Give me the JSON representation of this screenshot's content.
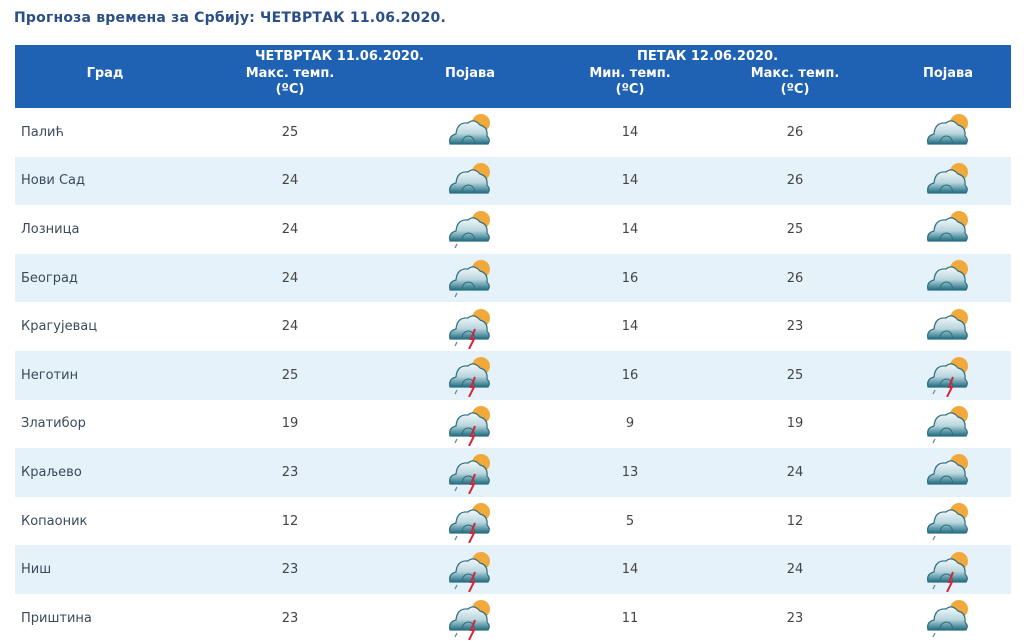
{
  "title": "Прогноза времена за Србију: ЧЕТВРТАК  11.06.2020.",
  "header": {
    "city": "Град",
    "day1": "ЧЕТВРТАК  11.06.2020.",
    "day2": "ПЕТАК  12.06.2020.",
    "max_temp": "Макс. темп.",
    "min_temp": "Мин. темп.",
    "unit": "(ºC)",
    "phenomenon": "Појава"
  },
  "colors": {
    "header_bg": "#1f62b4",
    "row_alt": "#e5f2fa",
    "title": "#2a4f86"
  },
  "rows": [
    {
      "city": "Палић",
      "d1_max": "25",
      "d1_icon": "partly-cloudy",
      "d2_min": "14",
      "d2_max": "26",
      "d2_icon": "partly-cloudy"
    },
    {
      "city": "Нови Сад",
      "d1_max": "24",
      "d1_icon": "partly-cloudy",
      "d2_min": "14",
      "d2_max": "26",
      "d2_icon": "partly-cloudy"
    },
    {
      "city": "Лозница",
      "d1_max": "24",
      "d1_icon": "showers",
      "d2_min": "14",
      "d2_max": "25",
      "d2_icon": "partly-cloudy"
    },
    {
      "city": "Београд",
      "d1_max": "24",
      "d1_icon": "showers",
      "d2_min": "16",
      "d2_max": "26",
      "d2_icon": "partly-cloudy"
    },
    {
      "city": "Крагујевац",
      "d1_max": "24",
      "d1_icon": "thunderstorm",
      "d2_min": "14",
      "d2_max": "23",
      "d2_icon": "partly-cloudy"
    },
    {
      "city": "Неготин",
      "d1_max": "25",
      "d1_icon": "thunderstorm",
      "d2_min": "16",
      "d2_max": "25",
      "d2_icon": "thunderstorm"
    },
    {
      "city": "Златибор",
      "d1_max": "19",
      "d1_icon": "thunderstorm",
      "d2_min": "9",
      "d2_max": "19",
      "d2_icon": "showers"
    },
    {
      "city": "Краљево",
      "d1_max": "23",
      "d1_icon": "thunderstorm",
      "d2_min": "13",
      "d2_max": "24",
      "d2_icon": "partly-cloudy"
    },
    {
      "city": "Копаоник",
      "d1_max": "12",
      "d1_icon": "thunderstorm",
      "d2_min": "5",
      "d2_max": "12",
      "d2_icon": "showers"
    },
    {
      "city": "Ниш",
      "d1_max": "23",
      "d1_icon": "thunderstorm",
      "d2_min": "14",
      "d2_max": "24",
      "d2_icon": "thunderstorm"
    },
    {
      "city": "Приштина",
      "d1_max": "23",
      "d1_icon": "thunderstorm",
      "d2_min": "11",
      "d2_max": "23",
      "d2_icon": "showers"
    }
  ]
}
